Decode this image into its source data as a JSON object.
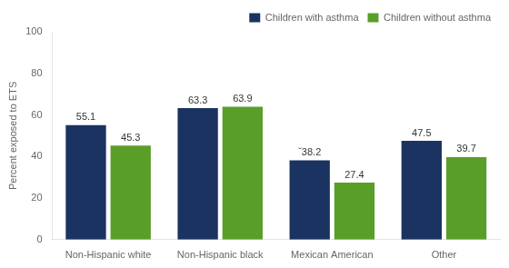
{
  "chart_data": {
    "type": "bar",
    "categories": [
      "Non-Hispanic white",
      "Non-Hispanic black",
      "Mexican American",
      "Other"
    ],
    "series": [
      {
        "name": "Children with asthma",
        "color": "#1a3360",
        "values": [
          55.1,
          63.3,
          38.2,
          47.5
        ],
        "value_labels": [
          "55.1",
          "63.3",
          "ˇ38.2",
          "47.5"
        ]
      },
      {
        "name": "Children without asthma",
        "color": "#5a9e2a",
        "values": [
          45.3,
          63.9,
          27.4,
          39.7
        ]
      }
    ],
    "ylabel": "Percent exposed to ETS",
    "ylim": [
      0,
      100
    ],
    "yticks": [
      0,
      20,
      40,
      60,
      80,
      100
    ],
    "grid": false,
    "legend": "upper right",
    "data_labels": true
  }
}
